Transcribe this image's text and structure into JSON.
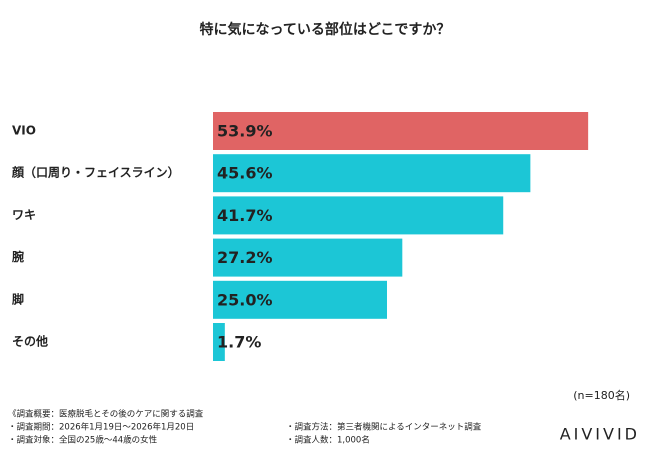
{
  "chart_data": {
    "type": "bar",
    "orientation": "horizontal",
    "title": "特に気になっている部位はどこですか？",
    "categories": [
      "VIO",
      "顔（口周り・フェイスライン）",
      "ワキ",
      "腕",
      "脚",
      "その他"
    ],
    "values": [
      53.9,
      45.6,
      41.7,
      27.2,
      25.0,
      1.7
    ],
    "value_labels": [
      "53.9%",
      "45.6%",
      "41.7%",
      "27.2%",
      "25.0%",
      "1.7%"
    ],
    "colors": [
      "#e06464",
      "#1cc6d6",
      "#1cc6d6",
      "#1cc6d6",
      "#1cc6d6",
      "#1cc6d6"
    ],
    "sample_note": "(n=180名)"
  },
  "footer": {
    "left": [
      "《調査概要：医療脱毛とその後のケアに関する調査",
      "・調査期間：2026年1月19日～2026年1月20日",
      "・調査対象：全国の25歳～44歳の女性"
    ],
    "right": [
      "・調査方法：第三者機関によるインターネット調査",
      "・調査人数：1,000名"
    ],
    "brand": "AIVIVID"
  }
}
